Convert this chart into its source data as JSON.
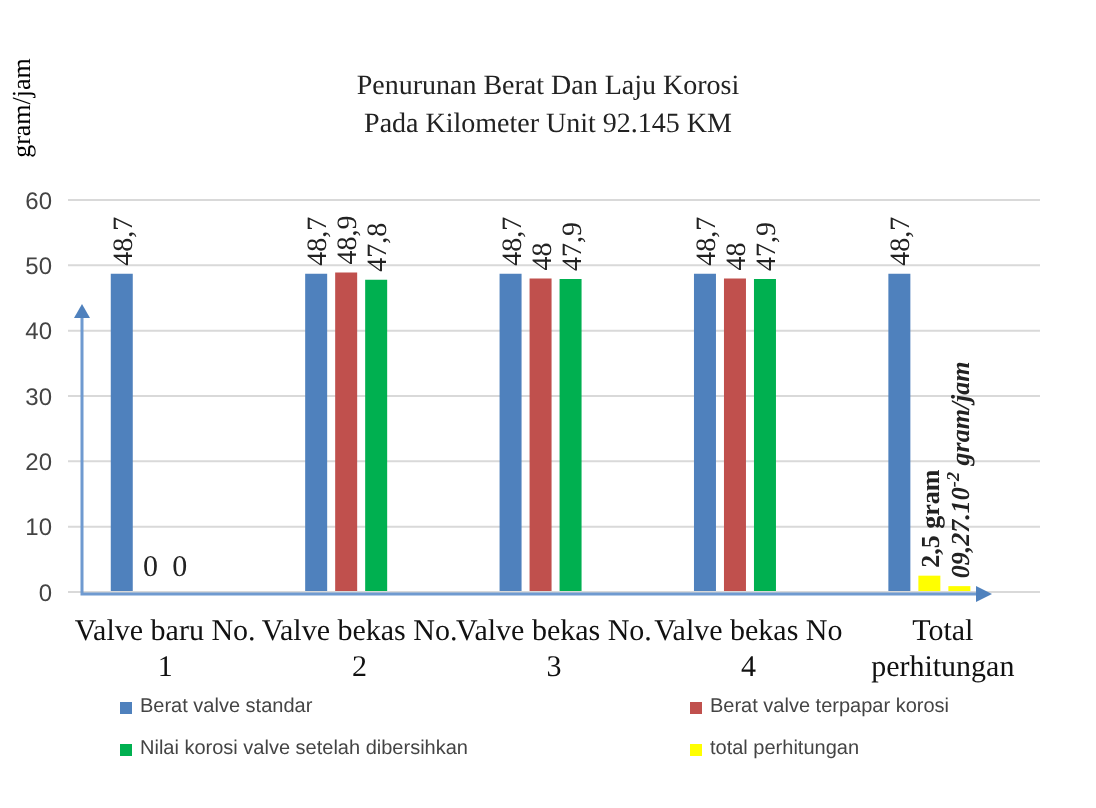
{
  "chart_data": {
    "type": "bar",
    "title": "Penurunan Berat Dan Laju Korosi\nPada Kilometer Unit 92.145 KM",
    "ylabel": "gram/jam",
    "categories": [
      "Valve baru No. 1",
      "Valve bekas No. 2",
      "Valve bekas No. 3",
      "Valve bekas No 4",
      "Total perhitungan"
    ],
    "series": [
      {
        "name": "Berat valve standar",
        "color": "#4f81bd",
        "values": [
          48.7,
          48.7,
          48.7,
          48.7,
          48.7
        ],
        "value_labels": [
          "48,7",
          "48,7",
          "48,7",
          "48,7",
          "48,7"
        ]
      },
      {
        "name": "Berat valve terpapar korosi",
        "color": "#c0504d",
        "colors": [
          "#c0504d",
          "#c0504d",
          "#c0504d",
          "#c0504d",
          "#ffff00"
        ],
        "values": [
          0,
          48.9,
          48,
          48,
          2.5
        ],
        "value_labels": [
          "0",
          "48,9",
          "48",
          "48",
          "2,5 gram"
        ]
      },
      {
        "name": "Nilai korosi valve setelah dibersihkan",
        "color": "#00b050",
        "colors": [
          "#00b050",
          "#00b050",
          "#00b050",
          "#00b050",
          "#ffff00"
        ],
        "values": [
          0,
          47.8,
          47.9,
          47.9,
          0.9
        ],
        "value_labels": [
          "0",
          "47,8",
          "47,9",
          "47,9",
          "09,27.10$^{-2}$ gram/jam"
        ]
      },
      {
        "name": "total perhitungan",
        "color": "#ffff00",
        "values": [
          null,
          null,
          null,
          null,
          null
        ]
      }
    ],
    "ylim": [
      0,
      60
    ],
    "yticks": [
      0,
      10,
      20,
      30,
      40,
      50,
      60
    ],
    "grid": "y",
    "legend": "bottom"
  }
}
